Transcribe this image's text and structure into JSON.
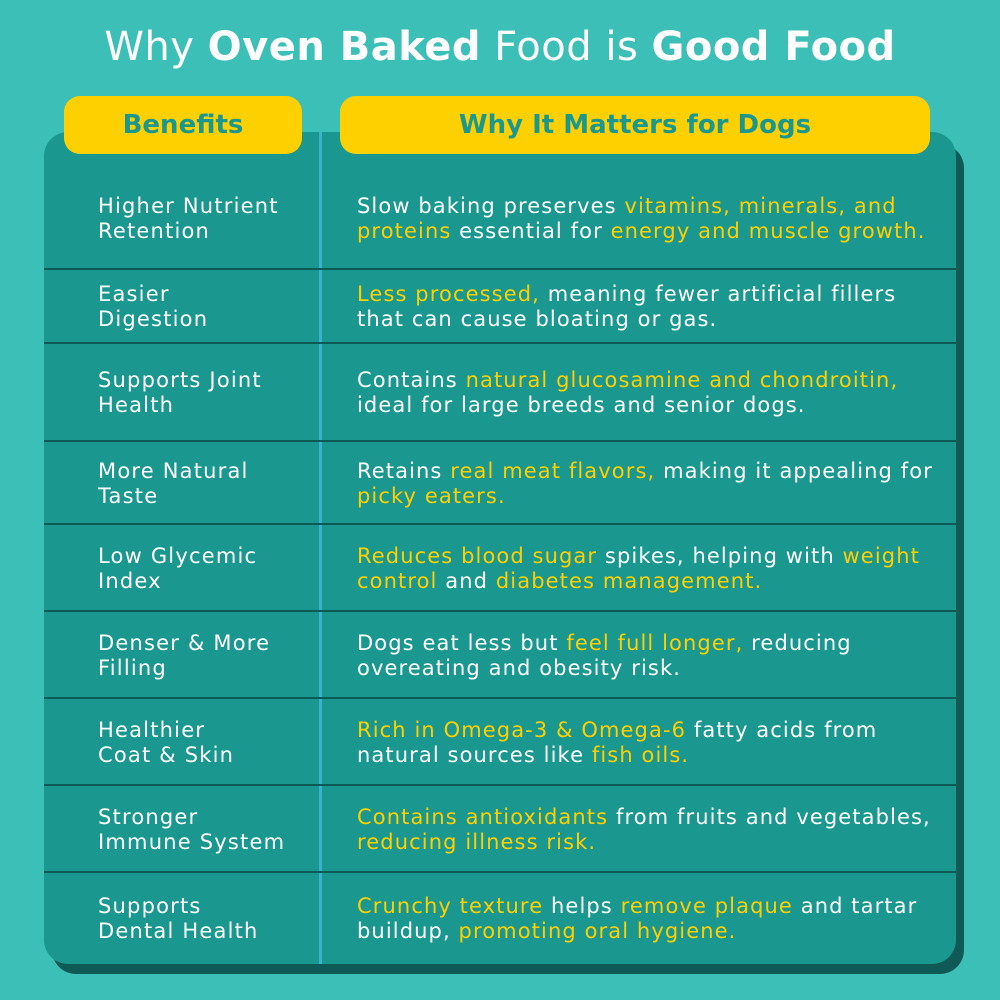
{
  "title": {
    "part1": "Why ",
    "part2": "Oven Baked",
    "part3": " Food is ",
    "part4": "Good Food"
  },
  "headers": {
    "benefits": "Benefits",
    "why": "Why It Matters for Dogs"
  },
  "colors": {
    "background": "#3cbfb6",
    "table": "#1a978e",
    "highlight": "#ffd000",
    "text": "#ffffff"
  },
  "rows": [
    {
      "benefit_line1": "Higher Nutrient",
      "benefit_line2": "Retention",
      "segments": [
        {
          "text": "Slow baking preserves ",
          "hl": false
        },
        {
          "text": "vitamins, minerals, and proteins",
          "hl": true
        },
        {
          "text": " essential for ",
          "hl": false
        },
        {
          "text": "energy and muscle growth.",
          "hl": true
        }
      ]
    },
    {
      "benefit_line1": "Easier",
      "benefit_line2": "Digestion",
      "segments": [
        {
          "text": "Less processed,",
          "hl": true
        },
        {
          "text": " meaning fewer artificial fillers that can cause bloating or gas.",
          "hl": false
        }
      ]
    },
    {
      "benefit_line1": "Supports Joint",
      "benefit_line2": "Health",
      "segments": [
        {
          "text": "Contains ",
          "hl": false
        },
        {
          "text": "natural glucosamine and chondroitin,",
          "hl": true
        },
        {
          "text": " ideal for large breeds and senior dogs.",
          "hl": false
        }
      ]
    },
    {
      "benefit_line1": "More Natural",
      "benefit_line2": "Taste",
      "segments": [
        {
          "text": "Retains ",
          "hl": false
        },
        {
          "text": "real meat flavors,",
          "hl": true
        },
        {
          "text": " making it appealing for ",
          "hl": false
        },
        {
          "text": "picky eaters.",
          "hl": true
        }
      ]
    },
    {
      "benefit_line1": "Low Glycemic",
      "benefit_line2": "Index",
      "segments": [
        {
          "text": "Reduces blood sugar",
          "hl": true
        },
        {
          "text": " spikes, helping with ",
          "hl": false
        },
        {
          "text": "weight control",
          "hl": true
        },
        {
          "text": " and ",
          "hl": false
        },
        {
          "text": "diabetes management.",
          "hl": true
        }
      ]
    },
    {
      "benefit_line1": "Denser & More",
      "benefit_line2": "Filling",
      "segments": [
        {
          "text": "Dogs eat less but ",
          "hl": false
        },
        {
          "text": "feel full longer,",
          "hl": true
        },
        {
          "text": " reducing overeating and obesity risk.",
          "hl": false
        }
      ]
    },
    {
      "benefit_line1": "Healthier",
      "benefit_line2": "Coat & Skin",
      "segments": [
        {
          "text": "Rich in Omega-3 & Omega-6",
          "hl": true
        },
        {
          "text": " fatty acids from natural sources like ",
          "hl": false
        },
        {
          "text": "fish oils.",
          "hl": true
        }
      ]
    },
    {
      "benefit_line1": "Stronger",
      "benefit_line2": "Immune System",
      "segments": [
        {
          "text": "Contains antioxidants",
          "hl": true
        },
        {
          "text": " from fruits and vegetables, ",
          "hl": false
        },
        {
          "text": "reducing illness risk.",
          "hl": true
        }
      ]
    },
    {
      "benefit_line1": "Supports",
      "benefit_line2": "Dental Health",
      "segments": [
        {
          "text": "Crunchy texture",
          "hl": true
        },
        {
          "text": " helps ",
          "hl": false
        },
        {
          "text": "remove plaque",
          "hl": true
        },
        {
          "text": " and tartar buildup, ",
          "hl": false
        },
        {
          "text": "promoting oral hygiene.",
          "hl": true
        }
      ]
    }
  ]
}
